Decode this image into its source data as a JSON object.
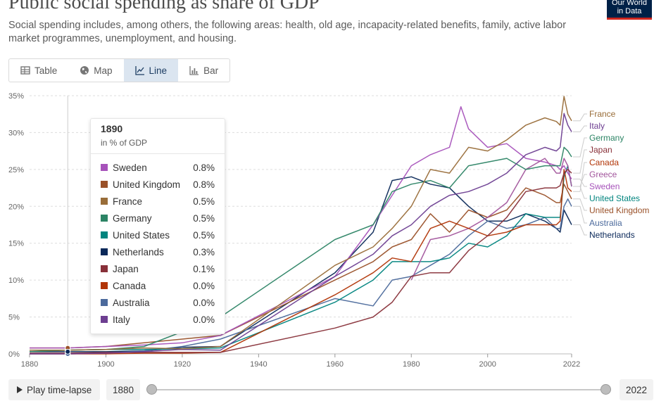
{
  "header": {
    "title": "Public social spending as share of GDP",
    "subtitle": "Social spending includes, among others, the following areas: health, old age, incapacity-related benefits, family, active labor market programmes, unemployment, and housing.",
    "logo_line1": "Our World",
    "logo_line2": "in Data"
  },
  "tabs": [
    {
      "label": "Table",
      "icon": "table-icon",
      "active": false
    },
    {
      "label": "Map",
      "icon": "globe-icon",
      "active": false
    },
    {
      "label": "Line",
      "icon": "line-chart-icon",
      "active": true
    },
    {
      "label": "Bar",
      "icon": "bar-chart-icon",
      "active": false
    }
  ],
  "tooltip": {
    "year": "1890",
    "unit": "in % of GDP",
    "rows": [
      {
        "name": "Sweden",
        "value": "0.8%",
        "color": "#a652ba"
      },
      {
        "name": "United Kingdom",
        "value": "0.8%",
        "color": "#9a5129"
      },
      {
        "name": "France",
        "value": "0.5%",
        "color": "#996d39"
      },
      {
        "name": "Germany",
        "value": "0.5%",
        "color": "#2c8465"
      },
      {
        "name": "United States",
        "value": "0.5%",
        "color": "#00847e"
      },
      {
        "name": "Netherlands",
        "value": "0.3%",
        "color": "#0a2859"
      },
      {
        "name": "Japan",
        "value": "0.1%",
        "color": "#883039"
      },
      {
        "name": "Canada",
        "value": "0.0%",
        "color": "#b13507"
      },
      {
        "name": "Australia",
        "value": "0.0%",
        "color": "#4c6a9c"
      },
      {
        "name": "Italy",
        "value": "0.0%",
        "color": "#6d3e91"
      }
    ]
  },
  "controls": {
    "play_label": "Play time-lapse",
    "start_year": "1880",
    "end_year": "2022"
  },
  "chart_data": {
    "type": "line",
    "title": "Public social spending as share of GDP",
    "ylabel": "% of GDP",
    "xlim": [
      1880,
      2022
    ],
    "ylim": [
      0,
      35
    ],
    "y_ticks": [
      "0%",
      "5%",
      "10%",
      "15%",
      "20%",
      "25%",
      "30%",
      "35%"
    ],
    "y_tick_values": [
      0,
      5,
      10,
      15,
      20,
      25,
      30,
      35
    ],
    "x_ticks": [
      "1880",
      "1900",
      "1920",
      "1940",
      "1960",
      "1980",
      "2000",
      "2022"
    ],
    "x_tick_values": [
      1880,
      1900,
      1920,
      1940,
      1960,
      1980,
      2000,
      2022
    ],
    "hover_year": 1890,
    "grid": true,
    "series": [
      {
        "name": "France",
        "color": "#996d39",
        "x": [
          1880,
          1890,
          1900,
          1910,
          1920,
          1930,
          1960,
          1970,
          1975,
          1980,
          1985,
          1990,
          1995,
          2000,
          2005,
          2010,
          2015,
          2018,
          2019,
          2020,
          2021,
          2022
        ],
        "y": [
          0.5,
          0.5,
          0.6,
          0.8,
          0.7,
          1.0,
          12.0,
          14.5,
          17.0,
          20.0,
          25.0,
          24.5,
          28.0,
          27.5,
          29.0,
          31.0,
          32.0,
          31.5,
          31.0,
          34.9,
          32.5,
          31.6
        ]
      },
      {
        "name": "Italy",
        "color": "#6d3e91",
        "x": [
          1880,
          1890,
          1900,
          1910,
          1920,
          1930,
          1960,
          1970,
          1975,
          1980,
          1985,
          1990,
          1995,
          2000,
          2005,
          2010,
          2015,
          2018,
          2019,
          2020,
          2021,
          2022
        ],
        "y": [
          0.0,
          0.0,
          0.1,
          0.3,
          0.6,
          0.5,
          10.5,
          13.5,
          16.0,
          17.5,
          20.0,
          21.5,
          22.0,
          23.0,
          24.5,
          27.0,
          28.0,
          27.5,
          28.0,
          32.6,
          31.0,
          30.1
        ]
      },
      {
        "name": "Germany",
        "color": "#2c8465",
        "x": [
          1880,
          1890,
          1900,
          1910,
          1920,
          1930,
          1960,
          1965,
          1970,
          1975,
          1980,
          1985,
          1990,
          1995,
          2000,
          2005,
          2010,
          2015,
          2018,
          2019,
          2020,
          2021,
          2022
        ],
        "y": [
          0.3,
          0.5,
          0.6,
          1.0,
          3.0,
          5.0,
          15.5,
          16.5,
          17.5,
          22.0,
          23.0,
          23.5,
          22.5,
          25.5,
          26.0,
          26.5,
          25.0,
          25.5,
          25.5,
          25.5,
          28.0,
          27.5,
          26.7
        ]
      },
      {
        "name": "Japan",
        "color": "#883039",
        "x": [
          1880,
          1890,
          1900,
          1910,
          1920,
          1930,
          1960,
          1970,
          1975,
          1980,
          1985,
          1990,
          1995,
          2000,
          2005,
          2010,
          2015,
          2018,
          2019,
          2020,
          2021,
          2022
        ],
        "y": [
          0.1,
          0.1,
          0.2,
          0.2,
          0.2,
          0.2,
          3.5,
          5.0,
          7.0,
          10.5,
          11.0,
          11.0,
          14.0,
          16.0,
          18.5,
          22.0,
          22.5,
          22.5,
          22.8,
          24.5,
          25.0,
          24.5
        ]
      },
      {
        "name": "Canada",
        "color": "#b13507",
        "x": [
          1880,
          1890,
          1900,
          1910,
          1920,
          1930,
          1960,
          1970,
          1975,
          1980,
          1985,
          1990,
          1995,
          2000,
          2005,
          2010,
          2015,
          2018,
          2019,
          2020,
          2021,
          2022
        ],
        "y": [
          0.0,
          0.0,
          0.0,
          0.1,
          0.1,
          0.2,
          8.0,
          11.0,
          13.0,
          12.5,
          17.0,
          18.0,
          17.0,
          16.0,
          16.5,
          17.5,
          17.5,
          17.5,
          18.0,
          25.0,
          22.5,
          22.0
        ]
      },
      {
        "name": "Greece",
        "color": "#a2559c",
        "x": [
          1980,
          1985,
          1990,
          1995,
          2000,
          2005,
          2010,
          2015,
          2018,
          2019,
          2020,
          2021,
          2022
        ],
        "y": [
          10.0,
          15.5,
          16.0,
          17.0,
          18.5,
          20.5,
          25.0,
          26.5,
          24.5,
          24.5,
          26.5,
          25.5,
          22.7
        ]
      },
      {
        "name": "Sweden",
        "color": "#a652ba",
        "x": [
          1880,
          1890,
          1900,
          1910,
          1920,
          1930,
          1960,
          1970,
          1975,
          1980,
          1985,
          1990,
          1993,
          1995,
          2000,
          2005,
          2010,
          2015,
          2018,
          2019,
          2020,
          2021,
          2022
        ],
        "y": [
          0.8,
          0.8,
          1.0,
          1.2,
          1.5,
          2.5,
          10.5,
          17.5,
          21.5,
          25.5,
          27.0,
          28.0,
          33.5,
          30.5,
          28.0,
          28.5,
          26.5,
          26.0,
          25.5,
          25.0,
          25.5,
          24.5,
          23.7
        ]
      },
      {
        "name": "United States",
        "color": "#00847e",
        "x": [
          1880,
          1890,
          1900,
          1910,
          1920,
          1930,
          1960,
          1970,
          1975,
          1980,
          1985,
          1990,
          1995,
          2000,
          2005,
          2010,
          2015,
          2018,
          2019,
          2020,
          2021,
          2022
        ],
        "y": [
          0.5,
          0.5,
          0.6,
          0.6,
          0.7,
          0.8,
          7.0,
          10.0,
          12.5,
          12.5,
          12.5,
          13.0,
          15.0,
          14.5,
          16.0,
          19.0,
          18.5,
          18.5,
          18.5,
          24.0,
          25.5,
          22.7
        ]
      },
      {
        "name": "United Kingdom",
        "color": "#9a5129",
        "x": [
          1880,
          1890,
          1900,
          1910,
          1920,
          1930,
          1960,
          1970,
          1975,
          1980,
          1985,
          1990,
          1995,
          2000,
          2005,
          2010,
          2015,
          2018,
          2019,
          2020,
          2021,
          2022
        ],
        "y": [
          0.8,
          0.8,
          1.0,
          1.5,
          2.0,
          2.5,
          10.0,
          12.5,
          14.5,
          15.5,
          19.0,
          16.5,
          19.5,
          18.5,
          19.5,
          22.5,
          21.5,
          20.5,
          20.5,
          23.0,
          22.0,
          21.0
        ]
      },
      {
        "name": "Australia",
        "color": "#4c6a9c",
        "x": [
          1880,
          1890,
          1900,
          1910,
          1920,
          1930,
          1960,
          1970,
          1975,
          1980,
          1985,
          1990,
          1995,
          2000,
          2005,
          2010,
          2015,
          2018,
          2019,
          2020,
          2021,
          2022
        ],
        "y": [
          0.0,
          0.0,
          0.1,
          0.4,
          1.0,
          2.0,
          7.5,
          6.5,
          10.0,
          10.5,
          12.0,
          13.5,
          16.0,
          18.0,
          17.0,
          17.5,
          18.5,
          17.0,
          17.0,
          20.0,
          21.0,
          20.0
        ]
      },
      {
        "name": "Netherlands",
        "color": "#0a2859",
        "x": [
          1880,
          1890,
          1900,
          1910,
          1920,
          1930,
          1960,
          1970,
          1975,
          1980,
          1985,
          1990,
          1995,
          2000,
          2005,
          2010,
          2015,
          2018,
          2019,
          2020,
          2021,
          2022
        ],
        "y": [
          0.3,
          0.3,
          0.3,
          0.4,
          0.9,
          1.0,
          11.0,
          16.5,
          23.5,
          24.0,
          23.0,
          22.5,
          20.0,
          18.0,
          18.0,
          19.0,
          18.0,
          17.0,
          16.5,
          19.5,
          18.5,
          17.5
        ]
      }
    ]
  }
}
